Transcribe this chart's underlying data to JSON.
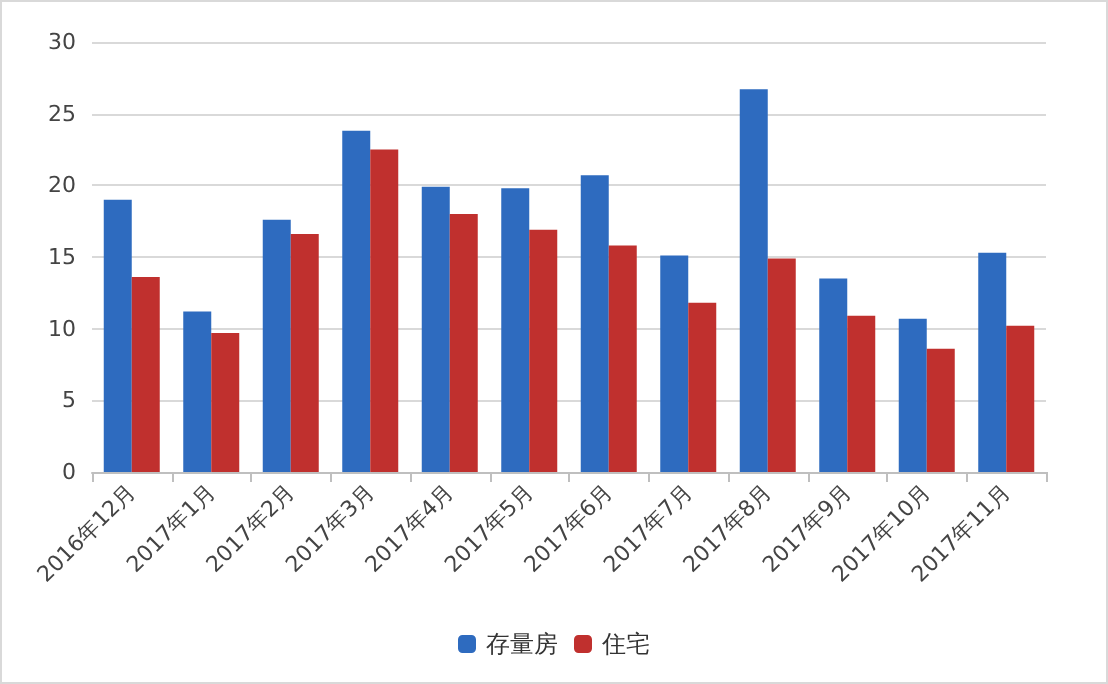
{
  "chart_data": {
    "type": "bar",
    "categories": [
      "2016年12月",
      "2017年1月",
      "2017年2月",
      "2017年3月",
      "2017年4月",
      "2017年5月",
      "2017年6月",
      "2017年7月",
      "2017年8月",
      "2017年9月",
      "2017年10月",
      "2017年11月"
    ],
    "series": [
      {
        "name": "存量房",
        "color": "#2e6bbf",
        "values": [
          19,
          11.2,
          17.6,
          23.8,
          19.9,
          19.8,
          20.7,
          15.1,
          26.7,
          13.5,
          10.7,
          15.3
        ]
      },
      {
        "name": "住宅",
        "color": "#c0302e",
        "values": [
          13.6,
          9.7,
          16.6,
          22.5,
          18,
          16.9,
          15.8,
          11.8,
          14.9,
          10.9,
          8.6,
          10.2
        ]
      }
    ],
    "ylim": [
      0,
      30
    ],
    "yticks": [
      0,
      5,
      10,
      15,
      20,
      25,
      30
    ],
    "grid": "y",
    "legend": "bottom"
  }
}
